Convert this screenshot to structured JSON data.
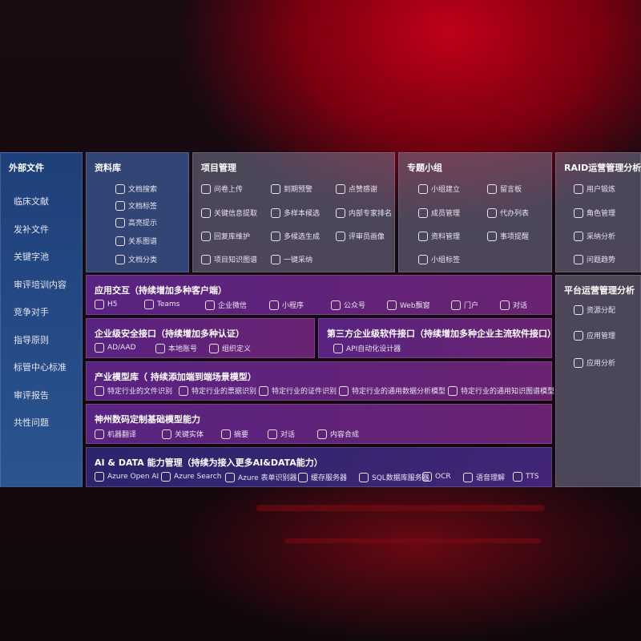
{
  "left": {
    "title": "外部文件",
    "items": [
      "临床文献",
      "发补文件",
      "关键字池",
      "审评培训内容",
      "竞争对手",
      "指导原则",
      "标管中心标准",
      "审评报告",
      "共性问题"
    ]
  },
  "panels": [
    {
      "id": "ziliao",
      "title": "资料库",
      "items": [
        {
          "label": "文档搜索",
          "icon": "document-search-icon"
        },
        {
          "label": "文档标签",
          "icon": "tag-icon"
        },
        {
          "label": "高亮提示",
          "icon": "pen-icon"
        },
        {
          "label": "关系图谱",
          "icon": "graph-icon"
        },
        {
          "label": "文档分类",
          "icon": "document-stack-icon"
        }
      ]
    },
    {
      "id": "xiangmu",
      "title": "项目管理",
      "items": [
        {
          "label": "问卷上传",
          "icon": "cloud-upload-icon"
        },
        {
          "label": "到期预警",
          "icon": "alarm-icon"
        },
        {
          "label": "点赞感谢",
          "icon": "thumbs-up-icon"
        },
        {
          "label": "关键信息提取",
          "icon": "window-icon"
        },
        {
          "label": "多样本候选",
          "icon": "reply-icon"
        },
        {
          "label": "内部专家排名",
          "icon": "ranking-icon"
        },
        {
          "label": "回复库维护",
          "icon": "edit-icon"
        },
        {
          "label": "多候选生成",
          "icon": "puzzle-icon"
        },
        {
          "label": "评审员画像",
          "icon": "user-icon"
        },
        {
          "label": "项目知识图谱",
          "icon": "graph-icon"
        },
        {
          "label": "一键采纳",
          "icon": "reply-icon"
        }
      ]
    },
    {
      "id": "zhuanti",
      "title": "专题小组",
      "items": [
        {
          "label": "小组建立",
          "icon": "group-icon"
        },
        {
          "label": "留言板",
          "icon": "bbs-icon"
        },
        {
          "label": "成员管理",
          "icon": "user-icon"
        },
        {
          "label": "代办列表",
          "icon": "checklist-icon"
        },
        {
          "label": "资料管理",
          "icon": "folder-icon"
        },
        {
          "label": "事项提醒",
          "icon": "bell-icon"
        },
        {
          "label": "小组标签",
          "icon": "tag-icon"
        }
      ]
    },
    {
      "id": "raid",
      "title": "RAID运营管理分析",
      "items": [
        {
          "label": "用户锻炼",
          "icon": "id-card-icon"
        },
        {
          "label": "角色管理",
          "icon": "users-icon"
        },
        {
          "label": "采纳分析",
          "icon": "qa-icon"
        },
        {
          "label": "问题趋势",
          "icon": "trend-chart-icon"
        }
      ]
    },
    {
      "id": "pingtai",
      "title": "平台运营管理分析",
      "items": [
        {
          "label": "资源分配",
          "icon": "list-icon"
        },
        {
          "label": "应用管理",
          "icon": "apps-icon"
        },
        {
          "label": "应用分析",
          "icon": "analysis-icon"
        }
      ]
    },
    {
      "id": "yingyong",
      "title": "应用交互（持续增加多种客户端）",
      "items": [
        {
          "label": "H5",
          "icon": "html5-icon"
        },
        {
          "label": "Teams",
          "icon": "teams-icon"
        },
        {
          "label": "企业微信",
          "icon": "wecom-icon"
        },
        {
          "label": "小程序",
          "icon": "miniprogram-icon"
        },
        {
          "label": "公众号",
          "icon": "official-account-icon"
        },
        {
          "label": "Web飘窗",
          "icon": "web-window-icon"
        },
        {
          "label": "门户",
          "icon": "portal-icon"
        },
        {
          "label": "对话",
          "icon": "chat-icon"
        }
      ]
    },
    {
      "id": "anquan",
      "title": "企业级安全接口（持续增加多种认证）",
      "items": [
        {
          "label": "AD/AAD",
          "icon": "ad-icon"
        },
        {
          "label": "本地账号",
          "icon": "local-account-icon"
        },
        {
          "label": "组织定义",
          "icon": "organization-icon"
        }
      ]
    },
    {
      "id": "disanfang",
      "title": "第三方企业级软件接口（持续增加多种企业主流软件接口）",
      "items": [
        {
          "label": "API自动化设计器",
          "icon": "api-gear-icon"
        }
      ]
    },
    {
      "id": "chanye",
      "title": "产业模型库（ 持续添加端到端场景模型）",
      "items": [
        {
          "label": "特定行业的文件识别",
          "icon": "file-icon"
        },
        {
          "label": "特定行业的票据识别",
          "icon": "receipt-icon"
        },
        {
          "label": "特定行业的证件识别",
          "icon": "id-card-icon"
        },
        {
          "label": "特定行业的通用数据分析模型",
          "icon": "data-analysis-icon"
        },
        {
          "label": "特定行业的通用知识图谱模型",
          "icon": "graph-icon"
        }
      ]
    },
    {
      "id": "shenzhou",
      "title": "神州数码定制基础模型能力",
      "items": [
        {
          "label": "机器翻译",
          "icon": "translate-icon"
        },
        {
          "label": "关键实体",
          "icon": "entity-icon"
        },
        {
          "label": "摘要",
          "icon": "summary-icon"
        },
        {
          "label": "对话",
          "icon": "chat-icon"
        },
        {
          "label": "内容合成",
          "icon": "puzzle-icon"
        }
      ]
    },
    {
      "id": "aidata",
      "title": "AI & DATA 能力管理（持续为接入更多AI&DATA能力）",
      "items": [
        {
          "label": "Azure Open AI",
          "icon": "openai-icon"
        },
        {
          "label": "Azure Search",
          "icon": "search-icon"
        },
        {
          "label": "Azure 表单识别器",
          "icon": "form-recognizer-icon"
        },
        {
          "label": "缓存服务器",
          "icon": "cache-server-icon"
        },
        {
          "label": "SQL数据库服务器",
          "icon": "sql-database-icon"
        },
        {
          "label": "OCR",
          "icon": "ocr-icon"
        },
        {
          "label": "语音理解",
          "icon": "speech-icon"
        },
        {
          "label": "TTS",
          "icon": "tts-icon"
        }
      ]
    }
  ]
}
